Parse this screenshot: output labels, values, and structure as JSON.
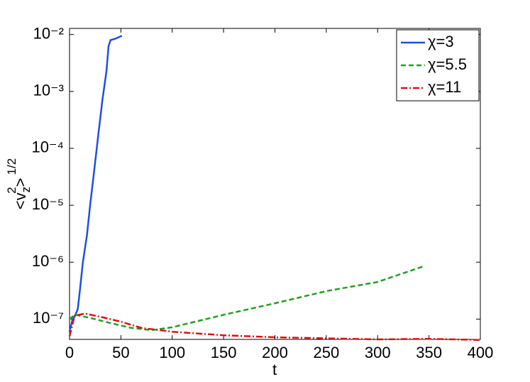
{
  "chart_data": {
    "type": "line",
    "log_y": true,
    "legend": "upper right",
    "xlabel": "t",
    "ylabel": {
      "open": "<v",
      "sub": "z",
      "sup": "2",
      "close": ">",
      "power": "1/2"
    },
    "xlim": [
      0,
      400
    ],
    "xticks": [
      0,
      50,
      100,
      150,
      200,
      250,
      300,
      350,
      400
    ],
    "ylim": [
      4.4e-08,
      0.0128
    ],
    "yticks": [
      {
        "value": 1e-07,
        "label": "10⁻⁷"
      },
      {
        "value": 1e-06,
        "label": "10⁻⁶"
      },
      {
        "value": 1e-05,
        "label": "10⁻⁵"
      },
      {
        "value": 0.0001,
        "label": "10⁻⁴"
      },
      {
        "value": 0.001,
        "label": "10⁻³"
      },
      {
        "value": 0.01,
        "label": "10⁻²"
      }
    ],
    "series": [
      {
        "name": "χ=3",
        "color": "#1f4fe0",
        "style": "solid",
        "x": [
          0,
          3,
          5,
          8,
          10,
          13,
          17,
          20,
          24,
          28,
          32,
          36,
          38,
          40,
          45,
          51
        ],
        "values": [
          6e-08,
          1e-07,
          1.1e-07,
          1.5e-07,
          3.1e-07,
          1e-06,
          3e-06,
          1e-05,
          4e-05,
          0.00017,
          0.0007,
          0.0023,
          0.0063,
          0.008,
          0.0085,
          0.0095
        ]
      },
      {
        "name": "χ=5.5",
        "color": "#22a022",
        "style": "dashed",
        "x": [
          0,
          5,
          20,
          40,
          60,
          80,
          100,
          150,
          200,
          250,
          300,
          345
        ],
        "values": [
          1e-07,
          1.2e-07,
          1.05e-07,
          8.5e-08,
          7e-08,
          6.4e-08,
          7.2e-08,
          1.19e-07,
          1.9e-07,
          3.1e-07,
          4.5e-07,
          8.5e-07
        ]
      },
      {
        "name": "χ=11",
        "color": "#e01010",
        "style": "dashdot",
        "x": [
          0,
          5,
          15,
          30,
          50,
          70,
          100,
          150,
          200,
          250,
          300,
          350,
          400
        ],
        "values": [
          5e-08,
          1.15e-07,
          1.25e-07,
          1.1e-07,
          9e-08,
          7e-08,
          6e-08,
          5.2e-08,
          4.8e-08,
          4.6e-08,
          4.4e-08,
          4.5e-08,
          4.3e-08
        ]
      }
    ]
  }
}
